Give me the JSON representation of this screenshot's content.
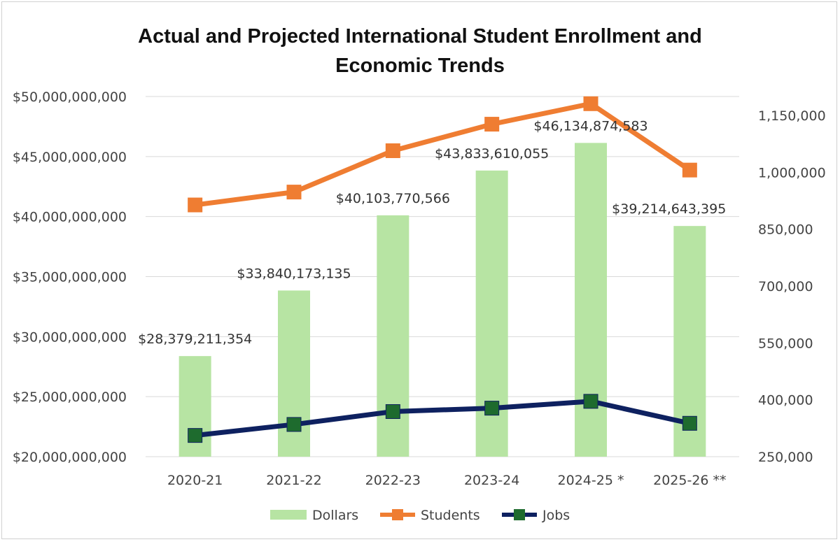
{
  "chart_data": {
    "type": "bar",
    "title_line1": "Actual and Projected International Student Enrollment and",
    "title_line2": "Economic Trends",
    "categories": [
      "2020-21",
      "2021-22",
      "2022-23",
      "2023-24",
      "2024-25 *",
      "2025-26 **"
    ],
    "y_left": {
      "ticks": [
        20000000000,
        25000000000,
        30000000000,
        35000000000,
        40000000000,
        45000000000,
        50000000000
      ],
      "tick_labels": [
        "$20,000,000,000",
        "$25,000,000,000",
        "$30,000,000,000",
        "$35,000,000,000",
        "$40,000,000,000",
        "$45,000,000,000",
        "$50,000,000,000"
      ],
      "ylim": [
        20000000000,
        50000000000
      ]
    },
    "y_right": {
      "ticks": [
        250000,
        400000,
        550000,
        700000,
        850000,
        1000000,
        1150000
      ],
      "tick_labels": [
        "250,000",
        "400,000",
        "550,000",
        "700,000",
        "850,000",
        "1,000,000",
        "1,150,000"
      ],
      "ylim": [
        250000,
        1200000
      ]
    },
    "series": [
      {
        "name": "Dollars",
        "kind": "bar",
        "axis": "left",
        "color": "#b7e4a3",
        "values": [
          28379211354,
          33840173135,
          40103770566,
          43833610055,
          46134874583,
          39214643395
        ],
        "labels": [
          "$28,379,211,354",
          "$33,840,173,135",
          "$40,103,770,566",
          "$43,833,610,055",
          "$46,134,874,583",
          "$39,214,643,395"
        ]
      },
      {
        "name": "Students",
        "kind": "line",
        "axis": "right",
        "color": "#ef7d32",
        "values": [
          914000,
          948000,
          1057000,
          1127000,
          1181000,
          1006000
        ]
      },
      {
        "name": "Jobs",
        "kind": "line",
        "axis": "right",
        "color": "#0e2160",
        "marker_color": "#1e6b2e",
        "values": [
          306000,
          335000,
          369000,
          378000,
          396000,
          338000
        ]
      }
    ],
    "grid": true,
    "legend_position": "bottom"
  }
}
